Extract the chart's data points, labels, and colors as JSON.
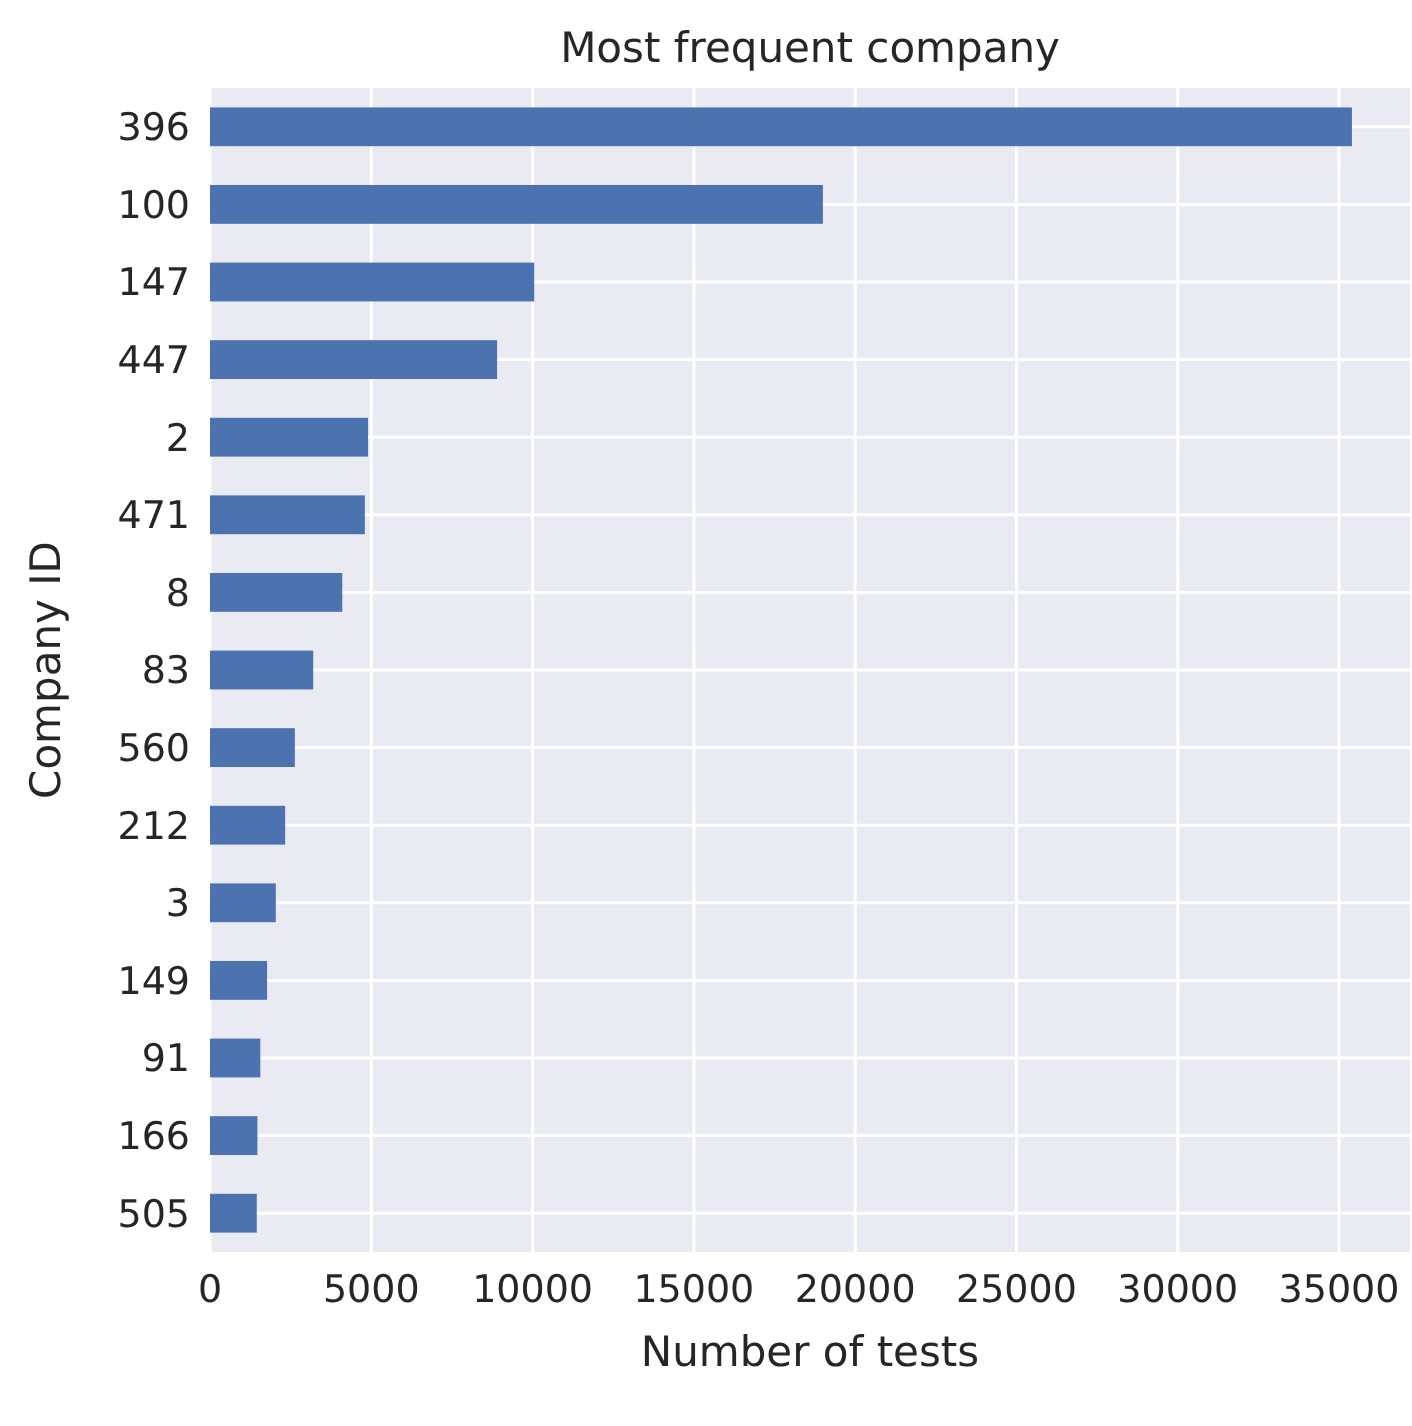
{
  "chart_data": {
    "type": "bar",
    "orientation": "horizontal",
    "title": "Most frequent company",
    "xlabel": "Number of tests",
    "ylabel": "Company ID",
    "categories": [
      "396",
      "100",
      "147",
      "447",
      "2",
      "471",
      "8",
      "83",
      "560",
      "212",
      "3",
      "149",
      "91",
      "166",
      "505"
    ],
    "values": [
      35400,
      19000,
      10050,
      8900,
      4900,
      4800,
      4100,
      3200,
      2630,
      2330,
      2040,
      1770,
      1560,
      1470,
      1450
    ],
    "color": "#4c72b0",
    "xlim": [
      0,
      37200
    ],
    "xticks": [
      0,
      5000,
      10000,
      15000,
      20000,
      25000,
      30000,
      35000
    ],
    "grid": true
  }
}
